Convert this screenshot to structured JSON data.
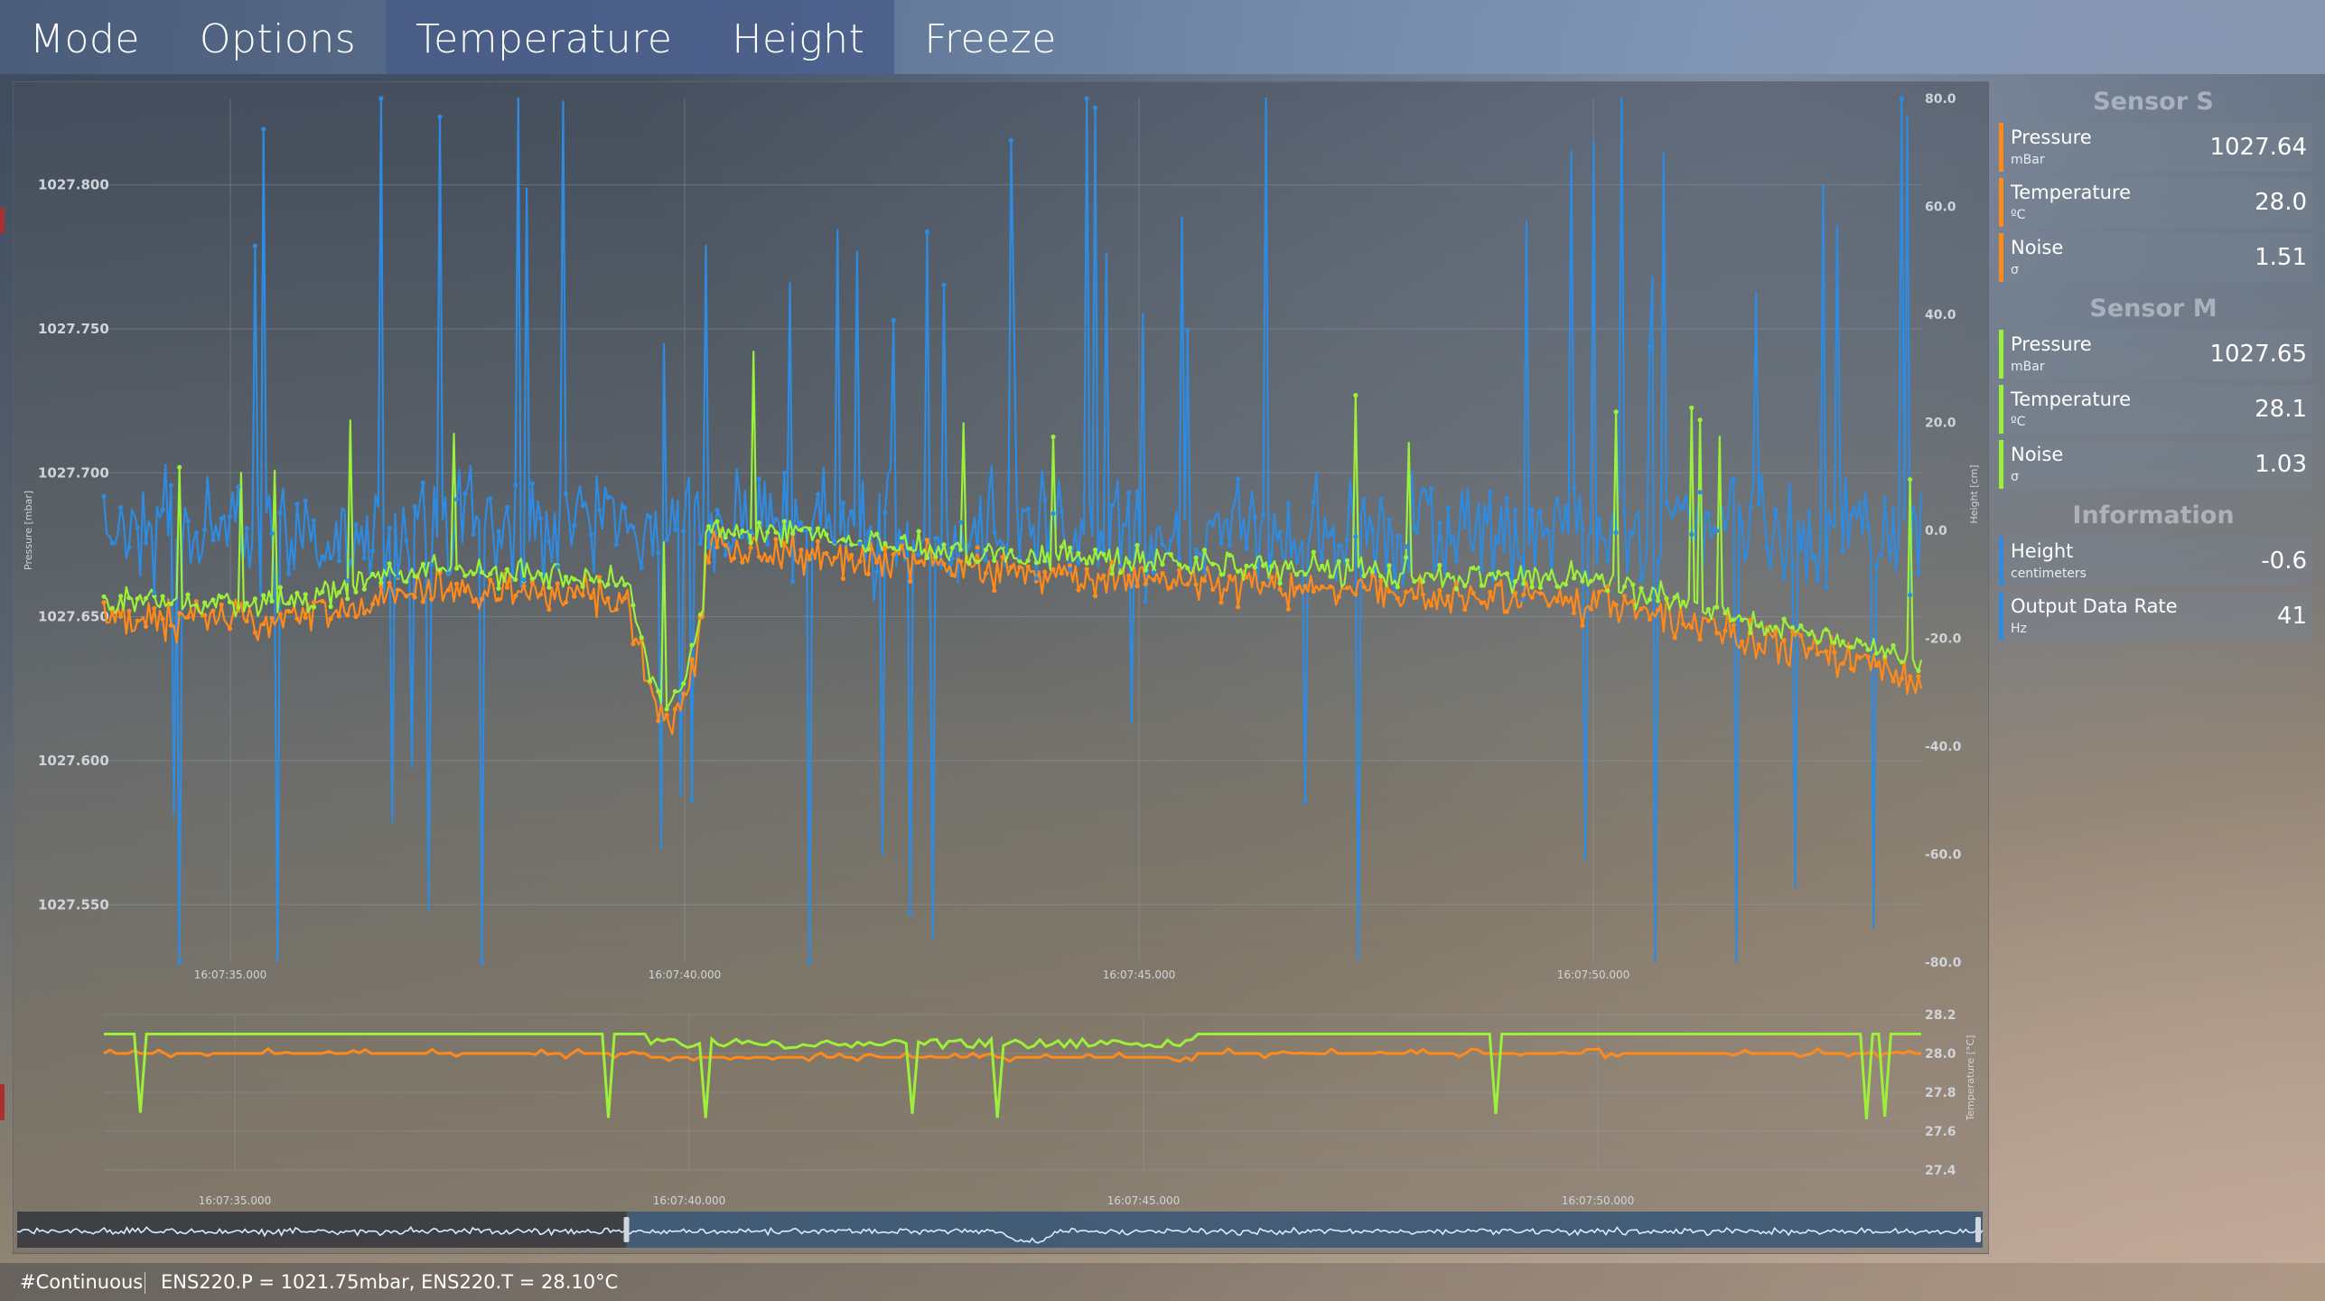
{
  "menu": [
    {
      "label": "Mode",
      "active": false
    },
    {
      "label": "Options",
      "active": false
    },
    {
      "label": "Temperature",
      "active": true
    },
    {
      "label": "Height",
      "active": true
    },
    {
      "label": "Freeze",
      "active": false
    }
  ],
  "sidebar": {
    "sensor_s": {
      "title": "Sensor S",
      "color": "#ff8a1a",
      "rows": [
        {
          "label": "Pressure",
          "unit": "mBar",
          "value": "1027.64"
        },
        {
          "label": "Temperature",
          "unit": "ºC",
          "value": "28.0"
        },
        {
          "label": "Noise",
          "unit": "σ",
          "value": "1.51"
        }
      ]
    },
    "sensor_m": {
      "title": "Sensor M",
      "color": "#9cf03a",
      "rows": [
        {
          "label": "Pressure",
          "unit": "mBar",
          "value": "1027.65"
        },
        {
          "label": "Temperature",
          "unit": "ºC",
          "value": "28.1"
        },
        {
          "label": "Noise",
          "unit": "σ",
          "value": "1.03"
        }
      ]
    },
    "information": {
      "title": "Information",
      "color": "#2e8be0",
      "rows": [
        {
          "label": "Height",
          "unit": "centimeters",
          "value": "-0.6"
        },
        {
          "label": "Output Data Rate",
          "unit": "Hz",
          "value": "41"
        }
      ]
    }
  },
  "statusbar": {
    "mode": "#Continuous",
    "message": "ENS220.P = 1021.75mbar, ENS220.T = 28.10°C"
  },
  "chart_data": [
    {
      "type": "line",
      "ylabel": "Pressure [mbar]",
      "y2label": "Height [cm]",
      "x_ticks": [
        "16:07:35.000",
        "16:07:40.000",
        "16:07:45.000",
        "16:07:50.000"
      ],
      "ylim": [
        1027.53,
        1027.83
      ],
      "y_ticks": [
        "1027.550",
        "1027.600",
        "1027.650",
        "1027.700",
        "1027.750",
        "1027.800"
      ],
      "y2lim": [
        -80,
        80
      ],
      "y2_ticks": [
        "80.0",
        "60.0",
        "40.0",
        "20.0",
        "0.0",
        "-20.0",
        "-40.0",
        "-60.0",
        "-80.0"
      ],
      "grid": true,
      "series": [
        {
          "sensor": "Sensor S",
          "color": "#ff8a1a",
          "axis": "pressure",
          "start_value": 1027.655,
          "end_value": 1027.625
        },
        {
          "sensor": "Sensor M",
          "color": "#9cf03a",
          "axis": "pressure",
          "start_value": 1027.657,
          "end_value": 1027.635
        },
        {
          "sensor": "Height",
          "color": "#2e8be0",
          "axis": "height",
          "start_value": 0,
          "end_value": 0
        }
      ]
    },
    {
      "type": "line",
      "y2label": "Temperature [°C]",
      "x_ticks": [
        "16:07:35.000",
        "16:07:40.000",
        "16:07:45.000",
        "16:07:50.000"
      ],
      "y2lim": [
        27.4,
        28.2
      ],
      "y2_ticks": [
        "28.2",
        "28.0",
        "27.8",
        "27.6",
        "27.4"
      ],
      "grid": true,
      "series": [
        {
          "sensor": "Sensor S",
          "color": "#ff8a1a",
          "value": 28.0
        },
        {
          "sensor": "Sensor M",
          "color": "#9cf03a",
          "value": 28.1
        }
      ]
    },
    {
      "type": "area",
      "role": "overview",
      "color": "#d8ecff",
      "selection_range": [
        0.31,
        1.0
      ]
    }
  ]
}
